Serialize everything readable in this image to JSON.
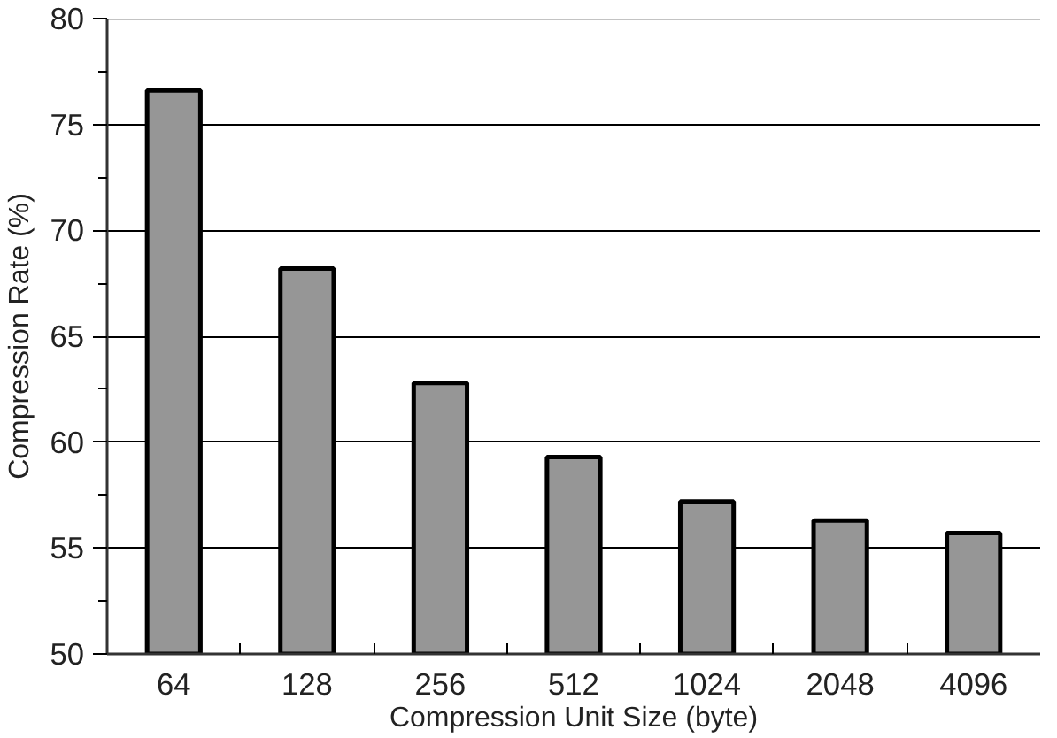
{
  "chart_data": {
    "type": "bar",
    "xlabel": "Compression Unit Size (byte)",
    "ylabel": "Compression Rate (%)",
    "categories": [
      "64",
      "128",
      "256",
      "512",
      "1024",
      "2048",
      "4096"
    ],
    "values": [
      76.6,
      68.2,
      62.8,
      59.3,
      57.2,
      56.3,
      55.7
    ],
    "color": "#969696",
    "ylim": [
      50,
      80
    ],
    "yticks": [
      50,
      {
        "value": 52.5,
        "label": null
      },
      55,
      {
        "value": 57.5,
        "label": null
      },
      60,
      {
        "value": 62.5,
        "label": null
      },
      65,
      {
        "value": 67.5,
        "label": null
      },
      70,
      {
        "value": 72.5,
        "label": null
      },
      75,
      {
        "value": 77.5,
        "label": null
      },
      80
    ],
    "grid": "y"
  }
}
